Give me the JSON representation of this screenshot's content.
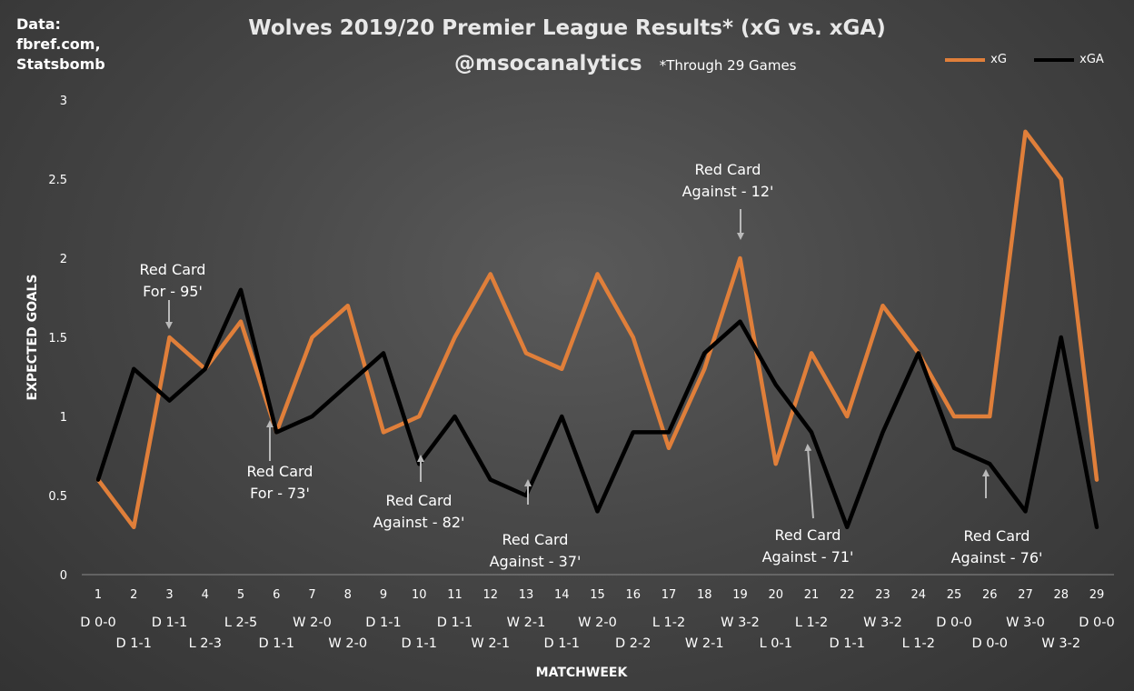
{
  "source_note": "Data:\nfbref.com,\nStatsbomb",
  "title": "Wolves 2019/20 Premier League Results* (xG vs. xGA)",
  "subtitle": "@msocanalytics",
  "footnote": "*Through 29 Games",
  "colors": {
    "xG": "#e07f3a",
    "xGA": "#000000"
  },
  "chart_data": {
    "type": "line",
    "xlabel": "MATCHWEEK",
    "ylabel": "EXPECTED GOALS",
    "ylim": [
      0,
      3
    ],
    "yticks": [
      "0",
      "0.5",
      "1",
      "1.5",
      "2",
      "2.5",
      "3"
    ],
    "grid": false,
    "legend": "top-right",
    "x": [
      1,
      2,
      3,
      4,
      5,
      6,
      7,
      8,
      9,
      10,
      11,
      12,
      13,
      14,
      15,
      16,
      17,
      18,
      19,
      20,
      21,
      22,
      23,
      24,
      25,
      26,
      27,
      28,
      29
    ],
    "results": [
      "D 0-0",
      "D 1-1",
      "D 1-1",
      "L 2-3",
      "L 2-5",
      "D 1-1",
      "W 2-0",
      "W 2-0",
      "D 1-1",
      "D 1-1",
      "D 1-1",
      "W 2-1",
      "W 2-1",
      "D 1-1",
      "W 2-0",
      "D 2-2",
      "L 1-2",
      "W 2-1",
      "W 3-2",
      "L 0-1",
      "L 1-2",
      "D 1-1",
      "W 3-2",
      "L 1-2",
      "D 0-0",
      "D 0-0",
      "W 3-0",
      "W 3-2",
      "D 0-0"
    ],
    "series": [
      {
        "name": "xG",
        "values": [
          0.6,
          0.3,
          1.5,
          1.3,
          1.6,
          0.9,
          1.5,
          1.7,
          0.9,
          1.0,
          1.5,
          1.9,
          1.4,
          1.3,
          1.9,
          1.5,
          0.8,
          1.3,
          2.0,
          0.7,
          1.4,
          1.0,
          1.7,
          1.4,
          1.0,
          1.0,
          2.8,
          2.5,
          0.6
        ]
      },
      {
        "name": "xGA",
        "values": [
          0.6,
          1.3,
          1.1,
          1.3,
          1.8,
          0.9,
          1.0,
          1.2,
          1.4,
          0.7,
          1.0,
          0.6,
          0.5,
          1.0,
          0.4,
          0.9,
          0.9,
          1.4,
          1.6,
          1.2,
          0.9,
          0.3,
          0.9,
          1.4,
          0.8,
          0.7,
          0.4,
          1.5,
          0.3
        ]
      }
    ],
    "annotations": [
      {
        "line1": "Red Card",
        "line2": "For - 95'",
        "x": 3,
        "y": 1.5
      },
      {
        "line1": "Red Card",
        "line2": "For - 73'",
        "x": 6,
        "y": 0.9
      },
      {
        "line1": "Red Card",
        "line2": "Against - 82'",
        "x": 10,
        "y": 0.7
      },
      {
        "line1": "Red Card",
        "line2": "Against - 37'",
        "x": 13,
        "y": 0.5
      },
      {
        "line1": "Red Card",
        "line2": "Against - 12'",
        "x": 19,
        "y": 2.0
      },
      {
        "line1": "Red Card",
        "line2": "Against - 71'",
        "x": 21,
        "y": 0.9
      },
      {
        "line1": "Red Card",
        "line2": "Against - 76'",
        "x": 26,
        "y": 0.7
      }
    ]
  }
}
